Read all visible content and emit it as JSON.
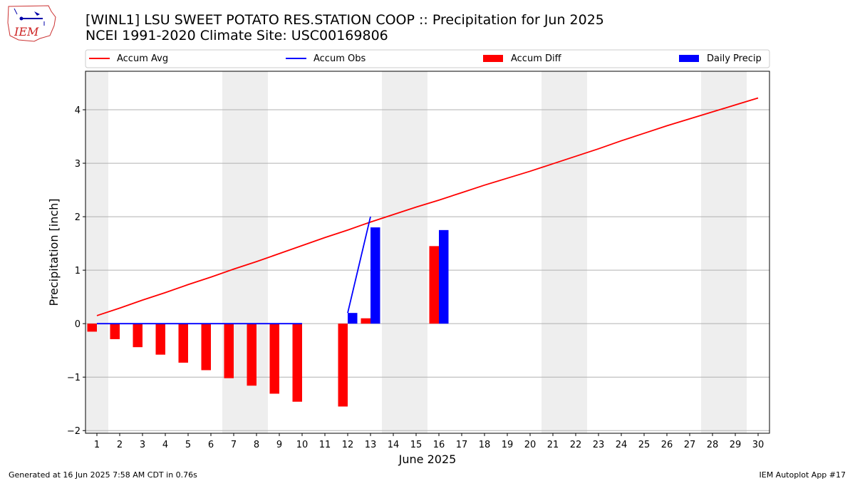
{
  "header": {
    "title_line1": "[WINL1] LSU SWEET POTATO RES.STATION COOP :: Precipitation for Jun 2025",
    "title_line2": "NCEI 1991-2020 Climate Site: USC00169806"
  },
  "logo": {
    "text": "IEM"
  },
  "footer": {
    "generated": "Generated at 16 Jun 2025 7:58 AM CDT in 0.76s",
    "app": "IEM Autoplot App #17"
  },
  "colors": {
    "avg": "#ff0000",
    "obs": "#0000ff",
    "diff": "#ff0000",
    "daily": "#0000ff",
    "weekend": "#eeeeee",
    "grid": "#b0b0b0"
  },
  "chart_data": {
    "type": "bar",
    "xlabel": "June 2025",
    "ylabel": "Precipitation [inch]",
    "xlim": [
      0.5,
      30.5
    ],
    "ylim": [
      -2.05,
      4.72
    ],
    "x_ticks": [
      1,
      2,
      3,
      4,
      5,
      6,
      7,
      8,
      9,
      10,
      11,
      12,
      13,
      14,
      15,
      16,
      17,
      18,
      19,
      20,
      21,
      22,
      23,
      24,
      25,
      26,
      27,
      28,
      29,
      30
    ],
    "y_ticks": [
      -2,
      -1,
      0,
      1,
      2,
      3,
      4
    ],
    "y_tick_labels": [
      "−2",
      "−1",
      "0",
      "1",
      "2",
      "3",
      "4"
    ],
    "grid": "horizontal",
    "legend_placement": "top, above plot",
    "weekend_spans": [
      [
        0.5,
        1.5
      ],
      [
        6.5,
        8.5
      ],
      [
        13.5,
        15.5
      ],
      [
        20.5,
        22.5
      ],
      [
        27.5,
        29.5
      ]
    ],
    "series": [
      {
        "name": "Accum Avg",
        "kind": "line",
        "x": [
          1,
          2,
          3,
          4,
          5,
          6,
          7,
          8,
          9,
          10,
          11,
          12,
          13,
          14,
          15,
          16,
          17,
          18,
          19,
          20,
          21,
          22,
          23,
          24,
          25,
          26,
          27,
          28,
          29,
          30
        ],
        "values": [
          0.15,
          0.29,
          0.44,
          0.58,
          0.73,
          0.87,
          1.02,
          1.16,
          1.31,
          1.46,
          1.61,
          1.75,
          1.9,
          2.04,
          2.18,
          2.31,
          2.45,
          2.59,
          2.72,
          2.85,
          2.99,
          3.13,
          3.27,
          3.42,
          3.56,
          3.7,
          3.83,
          3.96,
          4.09,
          4.22
        ]
      },
      {
        "name": "Accum Obs",
        "kind": "line",
        "x": [
          1,
          2,
          3,
          4,
          5,
          6,
          7,
          8,
          9,
          10,
          12,
          13
        ],
        "values": [
          0,
          0,
          0,
          0,
          0,
          0,
          0,
          0,
          0,
          0,
          0.2,
          2.0
        ]
      },
      {
        "name": "Accum Diff",
        "kind": "bar",
        "x": [
          1,
          2,
          3,
          4,
          5,
          6,
          7,
          8,
          9,
          10,
          12,
          13,
          16
        ],
        "values": [
          -0.15,
          -0.29,
          -0.44,
          -0.58,
          -0.73,
          -0.87,
          -1.02,
          -1.16,
          -1.31,
          -1.46,
          -1.55,
          0.1,
          1.45
        ]
      },
      {
        "name": "Daily Precip",
        "kind": "bar",
        "x": [
          12,
          13,
          16
        ],
        "values": [
          0.2,
          1.8,
          1.75
        ]
      }
    ]
  }
}
